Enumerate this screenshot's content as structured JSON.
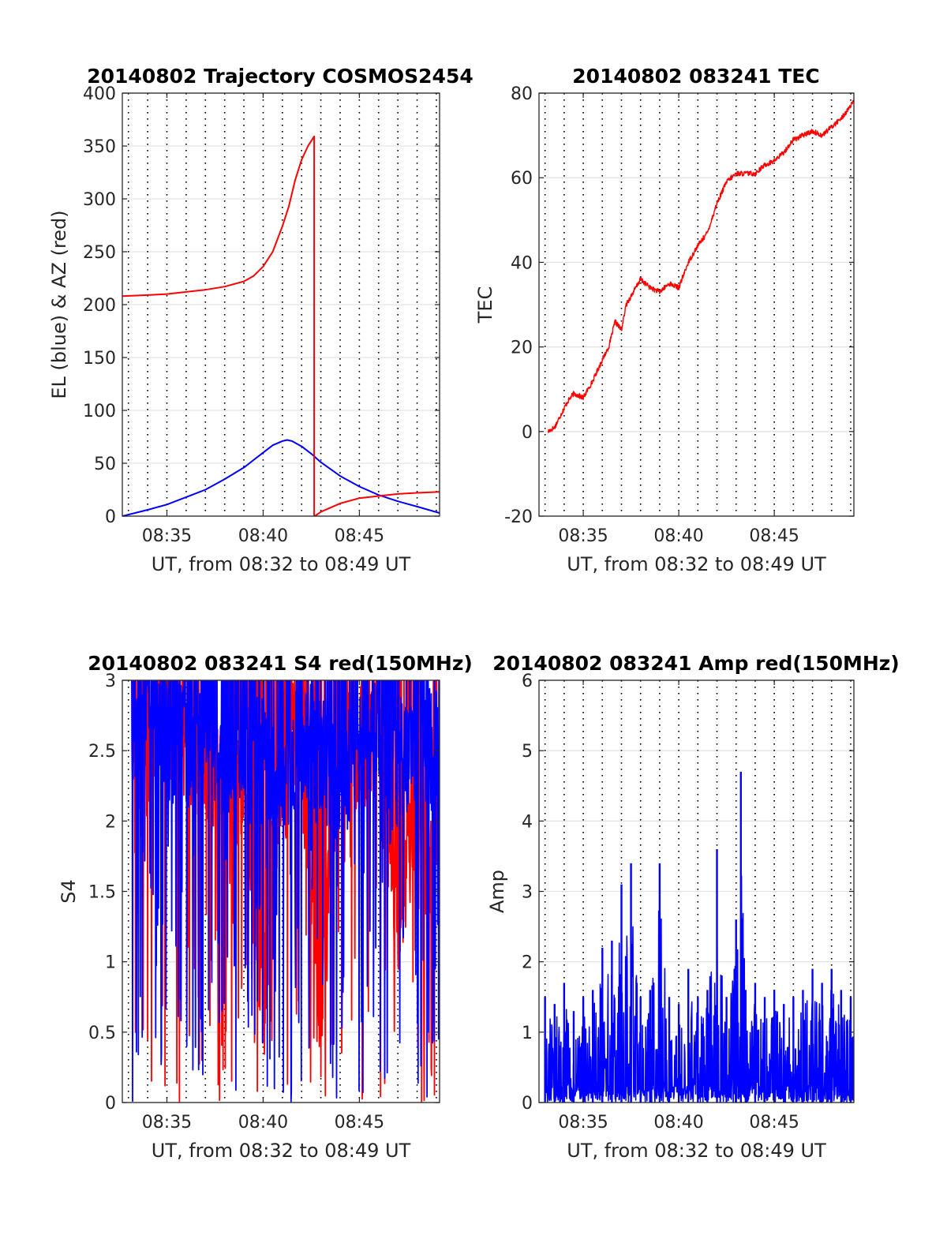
{
  "colors": {
    "az": "#ff0000",
    "el": "#0000ff",
    "tec": "#ff0000",
    "s4_red": "#ff0000",
    "s4_blue": "#0000ff",
    "amp": "#0000ff",
    "grid_solid": "#e3e3e3",
    "grid_dotted": "#000000"
  },
  "chart_data": [
    {
      "type": "line",
      "title": "20140802 Trajectory COSMOS2454",
      "xlabel": "UT, from 08:32 to 08:49 UT",
      "ylabel": "EL (blue) & AZ (red)",
      "xlim": [
        "08:32:41",
        "08:49:10"
      ],
      "ylim": [
        0,
        400
      ],
      "x_ticks": [
        "08:35",
        "08:40",
        "08:45"
      ],
      "y_ticks": [
        "0",
        "50",
        "100",
        "150",
        "200",
        "250",
        "300",
        "350",
        "400"
      ],
      "grid": true,
      "series": [
        {
          "name": "EL",
          "color": "blue",
          "x": [
            "08:32:41",
            "08:34:00",
            "08:35:00",
            "08:36:00",
            "08:37:00",
            "08:38:00",
            "08:39:00",
            "08:39:30",
            "08:40:00",
            "08:40:30",
            "08:41:00",
            "08:41:15",
            "08:41:30",
            "08:42:00",
            "08:42:30",
            "08:43:00",
            "08:44:00",
            "08:45:00",
            "08:46:00",
            "08:47:00",
            "08:48:00",
            "08:49:10"
          ],
          "y": [
            0,
            6,
            11,
            18,
            25,
            35,
            46,
            53,
            60,
            67,
            71,
            72,
            71,
            66,
            59,
            51,
            38,
            28,
            20,
            14,
            9,
            3
          ]
        },
        {
          "name": "AZ",
          "color": "red",
          "x": [
            "08:32:41",
            "08:34:00",
            "08:35:00",
            "08:36:00",
            "08:37:00",
            "08:38:00",
            "08:39:00",
            "08:39:30",
            "08:40:00",
            "08:40:30",
            "08:41:00",
            "08:41:20",
            "08:41:40",
            "08:42:00",
            "08:42:20",
            "08:42:39",
            "08:42:41",
            "08:43:00",
            "08:44:00",
            "08:45:00",
            "08:46:00",
            "08:47:00",
            "08:48:00",
            "08:49:10"
          ],
          "y": [
            208,
            209,
            210,
            212,
            214,
            217,
            222,
            227,
            236,
            250,
            274,
            293,
            318,
            337,
            350,
            359,
            0,
            4,
            12,
            17,
            19,
            21,
            22,
            23
          ]
        }
      ]
    },
    {
      "type": "line",
      "title": "20140802 083241 TEC",
      "xlabel": "UT, from 08:32 to 08:49 UT",
      "ylabel": "TEC",
      "xlim": [
        "08:32:41",
        "08:49:10"
      ],
      "ylim": [
        -20,
        80
      ],
      "x_ticks": [
        "08:35",
        "08:40",
        "08:45"
      ],
      "y_ticks": [
        "-20",
        "0",
        "20",
        "40",
        "60",
        "80"
      ],
      "grid": true,
      "series": [
        {
          "name": "TEC",
          "color": "red",
          "x": [
            "08:33:10",
            "08:33:30",
            "08:33:50",
            "08:34:10",
            "08:34:30",
            "08:35:00",
            "08:35:30",
            "08:36:00",
            "08:36:20",
            "08:36:40",
            "08:37:00",
            "08:37:15",
            "08:37:30",
            "08:38:00",
            "08:38:30",
            "08:39:00",
            "08:39:30",
            "08:40:00",
            "08:40:30",
            "08:41:00",
            "08:41:30",
            "08:42:00",
            "08:42:30",
            "08:43:00",
            "08:43:30",
            "08:44:00",
            "08:44:30",
            "08:45:00",
            "08:45:30",
            "08:46:00",
            "08:46:30",
            "08:47:00",
            "08:47:30",
            "08:48:00",
            "08:48:30",
            "08:49:10"
          ],
          "y": [
            0,
            1,
            4,
            7,
            9,
            8,
            12,
            17,
            20,
            26,
            24,
            30,
            32,
            36,
            34,
            33,
            35,
            34,
            40,
            44,
            47,
            54,
            59,
            61,
            61,
            61,
            63,
            64,
            66,
            69,
            70,
            71,
            70,
            72,
            74,
            78
          ]
        }
      ]
    },
    {
      "type": "line",
      "title": "20140802 083241 S4 red(150MHz)",
      "xlabel": "UT, from 08:32 to 08:49 UT",
      "ylabel": "S4",
      "xlim": [
        "08:32:41",
        "08:49:10"
      ],
      "ylim": [
        0,
        3
      ],
      "x_ticks": [
        "08:35",
        "08:40",
        "08:45"
      ],
      "y_ticks": [
        "0",
        "0.5",
        "1",
        "1.5",
        "2",
        "2.5",
        "3"
      ],
      "grid": true,
      "series": [
        {
          "name": "S4 red",
          "color": "red",
          "x": [
            "08:33:10",
            "08:34:00",
            "08:35:00",
            "08:36:00",
            "08:37:00",
            "08:38:00",
            "08:39:00",
            "08:40:00",
            "08:41:00",
            "08:42:00",
            "08:43:00",
            "08:44:00",
            "08:45:00",
            "08:46:00",
            "08:47:00",
            "08:48:00",
            "08:49:00"
          ],
          "y": [
            2.6,
            2.4,
            2.8,
            2.5,
            2.4,
            2.2,
            2.3,
            0.8,
            2.5,
            2.6,
            0.6,
            2.7,
            2.5,
            2.6,
            1.3,
            2.2,
            1.6
          ]
        },
        {
          "name": "S4 blue",
          "color": "blue",
          "x": [
            "08:33:10",
            "08:34:00",
            "08:35:00",
            "08:36:00",
            "08:37:00",
            "08:38:00",
            "08:39:00",
            "08:40:00",
            "08:41:00",
            "08:42:00",
            "08:43:00",
            "08:44:00",
            "08:45:00",
            "08:46:00",
            "08:47:00",
            "08:48:00",
            "08:49:00"
          ],
          "y": [
            2.7,
            2.9,
            2.6,
            2.5,
            2.7,
            2.4,
            2.6,
            2.5,
            2.3,
            2.6,
            2.5,
            2.2,
            2.6,
            2.7,
            2.4,
            2.6,
            2.5
          ]
        }
      ]
    },
    {
      "type": "line",
      "title": "20140802 083241 Amp red(150MHz)",
      "xlabel": "UT, from 08:32 to 08:49 UT",
      "ylabel": "Amp",
      "xlim": [
        "08:32:41",
        "08:49:10"
      ],
      "ylim": [
        0,
        6
      ],
      "x_ticks": [
        "08:35",
        "08:40",
        "08:45"
      ],
      "y_ticks": [
        "0",
        "1",
        "2",
        "3",
        "4",
        "5",
        "6"
      ],
      "grid": true,
      "series": [
        {
          "name": "Amp",
          "color": "blue",
          "x": [
            "08:33:00",
            "08:33:30",
            "08:34:00",
            "08:34:30",
            "08:35:00",
            "08:35:30",
            "08:36:00",
            "08:36:30",
            "08:37:00",
            "08:37:30",
            "08:38:00",
            "08:38:30",
            "08:39:00",
            "08:39:30",
            "08:40:00",
            "08:40:30",
            "08:41:00",
            "08:41:30",
            "08:42:00",
            "08:42:30",
            "08:43:00",
            "08:43:15",
            "08:43:30",
            "08:44:00",
            "08:44:30",
            "08:45:00",
            "08:45:30",
            "08:46:00",
            "08:46:30",
            "08:47:00",
            "08:47:30",
            "08:48:00",
            "08:48:30",
            "08:49:00"
          ],
          "y": [
            1.5,
            1.4,
            1.7,
            1.3,
            1.5,
            1.6,
            2.2,
            2.3,
            3.1,
            3.4,
            1.5,
            1.6,
            3.4,
            1.5,
            1.4,
            1.9,
            1.5,
            1.6,
            3.6,
            1.5,
            2.6,
            4.7,
            1.6,
            1.7,
            1.5,
            1.6,
            1.4,
            1.5,
            1.6,
            1.9,
            1.7,
            1.9,
            1.6,
            1.5
          ]
        }
      ]
    }
  ]
}
